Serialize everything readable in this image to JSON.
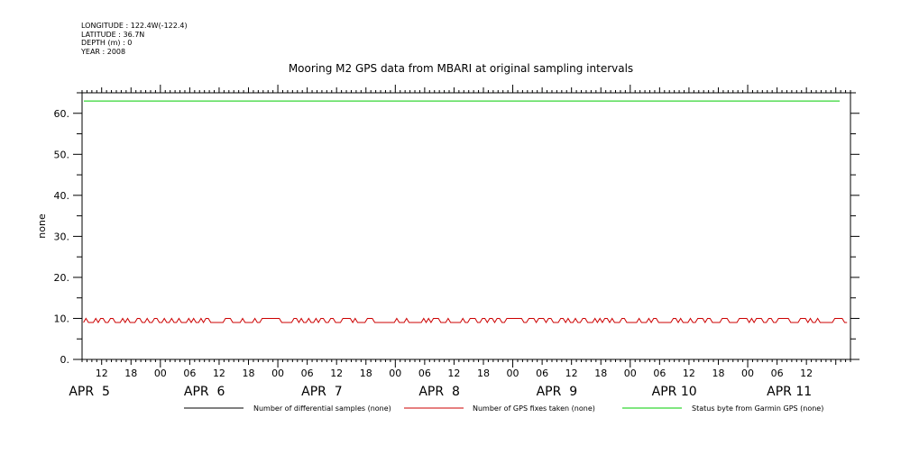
{
  "header": {
    "lines": [
      "LONGITUDE : 122.4W(-122.4)",
      "LATITUDE : 36.7N",
      "DEPTH (m) : 0",
      "YEAR : 2008"
    ]
  },
  "chart_data": {
    "type": "line",
    "title": "Mooring M2 GPS data from MBARI at original sampling intervals",
    "ylabel": "none",
    "xlabel": "",
    "ylim": [
      0,
      65
    ],
    "yticks": [
      0,
      10,
      20,
      30,
      40,
      50,
      60
    ],
    "ytick_labels": [
      "0.",
      "10.",
      "20.",
      "30.",
      "40.",
      "50.",
      "60."
    ],
    "x_range_hours": [
      8,
      165
    ],
    "x_hour_ticks": [
      {
        "h": 12,
        "label": "12"
      },
      {
        "h": 18,
        "label": "18"
      },
      {
        "h": 24,
        "label": "00"
      },
      {
        "h": 30,
        "label": "06"
      },
      {
        "h": 36,
        "label": "12"
      },
      {
        "h": 42,
        "label": "18"
      },
      {
        "h": 48,
        "label": "00"
      },
      {
        "h": 54,
        "label": "06"
      },
      {
        "h": 60,
        "label": "12"
      },
      {
        "h": 66,
        "label": "18"
      },
      {
        "h": 72,
        "label": "00"
      },
      {
        "h": 78,
        "label": "06"
      },
      {
        "h": 84,
        "label": "12"
      },
      {
        "h": 90,
        "label": "18"
      },
      {
        "h": 96,
        "label": "00"
      },
      {
        "h": 102,
        "label": "06"
      },
      {
        "h": 108,
        "label": "12"
      },
      {
        "h": 114,
        "label": "18"
      },
      {
        "h": 120,
        "label": "00"
      },
      {
        "h": 126,
        "label": "06"
      },
      {
        "h": 132,
        "label": "12"
      },
      {
        "h": 138,
        "label": "18"
      },
      {
        "h": 144,
        "label": "00"
      },
      {
        "h": 150,
        "label": "06"
      },
      {
        "h": 156,
        "label": "12"
      }
    ],
    "x_day_labels": [
      {
        "h": 9.5,
        "label": "APR  5"
      },
      {
        "h": 33,
        "label": "APR  6"
      },
      {
        "h": 57,
        "label": "APR  7"
      },
      {
        "h": 81,
        "label": "APR  8"
      },
      {
        "h": 105,
        "label": "APR  9"
      },
      {
        "h": 129,
        "label": "APR 10"
      },
      {
        "h": 152.5,
        "label": "APR 11"
      }
    ],
    "series": [
      {
        "name": "Number of differential samples (none)",
        "color": "#000000",
        "constant": null
      },
      {
        "name": "Number of GPS fixes taken (none)",
        "color": "#cc0000",
        "base": 9,
        "alt": 10
      },
      {
        "name": "Status byte from Garmin GPS (none)",
        "color": "#00cc00",
        "constant": 63
      }
    ]
  }
}
